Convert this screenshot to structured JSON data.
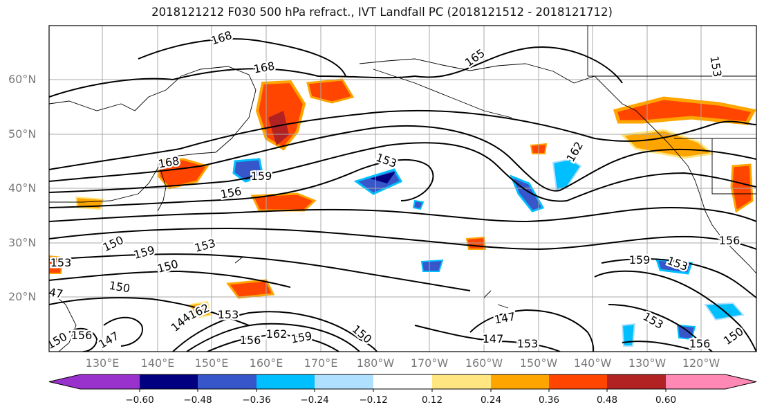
{
  "title": "2018121212 F030 500 hPa refract., IVT Landfall PC (2018121512 - 2018121712)",
  "map": {
    "lat_labels": [
      "60°N",
      "50°N",
      "40°N",
      "30°N",
      "20°N"
    ],
    "lon_labels": [
      "130°E",
      "140°E",
      "150°E",
      "160°E",
      "170°E",
      "180°W",
      "170°W",
      "160°W",
      "150°W",
      "140°W",
      "130°W",
      "120°W"
    ],
    "contour_labels": [
      "168",
      "168",
      "165",
      "162",
      "168",
      "159",
      "156",
      "153",
      "150",
      "159",
      "153",
      "150",
      "153",
      "150",
      "147",
      "147",
      "147",
      "153",
      "156",
      "162",
      "159",
      "150",
      "159",
      "156",
      "153",
      "156",
      "153",
      "150",
      "162",
      "156",
      "153",
      "153",
      "144",
      "147",
      "150"
    ]
  },
  "colorbar": {
    "ticks": [
      "−0.60",
      "−0.48",
      "−0.36",
      "−0.24",
      "−0.12",
      "0.12",
      "0.24",
      "0.36",
      "0.48",
      "0.60"
    ],
    "colors": [
      "#9932cc",
      "#000080",
      "#3656c9",
      "#00bfff",
      "#b0e0ff",
      "#ffffff",
      "#ffe680",
      "#ffa500",
      "#ff4500",
      "#b22222",
      "#ff88b4"
    ]
  },
  "colors": {
    "contour": "#000000",
    "coast": "#000000",
    "grid": "#a8a8a8",
    "axis_label": "#7a7a7a"
  }
}
